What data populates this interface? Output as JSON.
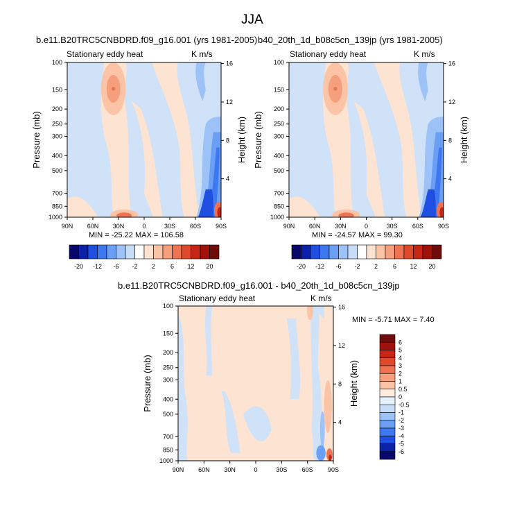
{
  "figure": {
    "title": "JJA"
  },
  "chart_data": [
    {
      "type": "heatmap",
      "title": "b.e11.B20TRC5CNBDRD.f09_g16.001 (yrs 1981-2005)",
      "left_label": "Stationary eddy heat",
      "right_label": "K m/s",
      "xlabel": "",
      "ylabel": "Pressure (mb)",
      "y2label": "Height (km)",
      "x_ticks": [
        "90N",
        "60N",
        "30N",
        "0",
        "30S",
        "60S",
        "90S"
      ],
      "y_ticks": [
        "100",
        "150",
        "200",
        "250",
        "300",
        "400",
        "500",
        "700",
        "850",
        "1000"
      ],
      "y2_ticks": [
        "16",
        "12",
        "8",
        "4"
      ],
      "y_scale": "log",
      "ylim": [
        1000,
        100
      ],
      "stats": "MIN = -25.22   MAX = 106.58",
      "min": -25.22,
      "max": 106.58,
      "colorbar": {
        "orientation": "horizontal",
        "labels": [
          "-20",
          "-12",
          "-6",
          "-2",
          "2",
          "6",
          "12",
          "20"
        ]
      }
    },
    {
      "type": "heatmap",
      "title": "b40_20th_1d_b08c5cn_139jp (yrs 1981-2005)",
      "left_label": "Stationary eddy heat",
      "right_label": "K m/s",
      "xlabel": "",
      "ylabel": "Pressure (mb)",
      "y2label": "Height (km)",
      "x_ticks": [
        "90N",
        "60N",
        "30N",
        "0",
        "30S",
        "60S",
        "90S"
      ],
      "y_ticks": [
        "100",
        "150",
        "200",
        "250",
        "300",
        "400",
        "500",
        "700",
        "850",
        "1000"
      ],
      "y2_ticks": [
        "16",
        "12",
        "8",
        "4"
      ],
      "y_scale": "log",
      "ylim": [
        1000,
        100
      ],
      "stats": "MIN = -24.57   MAX =  99.30",
      "min": -24.57,
      "max": 99.3,
      "colorbar": {
        "orientation": "horizontal",
        "labels": [
          "-20",
          "-12",
          "-6",
          "-2",
          "2",
          "6",
          "12",
          "20"
        ]
      }
    },
    {
      "type": "heatmap",
      "title": "b.e11.B20TRC5CNBDRD.f09_g16.001 - b40_20th_1d_b08c5cn_139jp",
      "left_label": "Stationary eddy heat",
      "right_label": "K m/s",
      "xlabel": "",
      "ylabel": "Pressure (mb)",
      "y2label": "Height (km)",
      "x_ticks": [
        "90N",
        "60N",
        "30N",
        "0",
        "30S",
        "60S",
        "90S"
      ],
      "y_ticks": [
        "100",
        "150",
        "200",
        "250",
        "300",
        "400",
        "500",
        "700",
        "850",
        "1000"
      ],
      "y2_ticks": [
        "16",
        "12",
        "8",
        "4"
      ],
      "y_scale": "log",
      "ylim": [
        1000,
        100
      ],
      "stats": "MIN =  -5.71  MAX =   7.40",
      "min": -5.71,
      "max": 7.4,
      "colorbar": {
        "orientation": "vertical",
        "labels": [
          "6",
          "5",
          "4",
          "3",
          "2",
          "1",
          "0.5",
          "0",
          "-0.5",
          "-1",
          "-2",
          "-3",
          "-4",
          "-5",
          "-6"
        ]
      }
    }
  ],
  "colors": {
    "main_scale": [
      "#08086b",
      "#0b22a8",
      "#1f4fe0",
      "#3d78f0",
      "#6a9ff5",
      "#9cc2f7",
      "#c7dcf7",
      "#ffffff",
      "#fde3d2",
      "#fbc4a6",
      "#f69f7c",
      "#ee7352",
      "#e04a2c",
      "#c62613",
      "#a0110a",
      "#6e0c0c"
    ],
    "diff_scale": [
      "#08086b",
      "#0b22a8",
      "#1f4fe0",
      "#3d78f0",
      "#6a9ff5",
      "#9cc2f7",
      "#c7dcf7",
      "#e6f0fb",
      "#fdebe0",
      "#fbc4a6",
      "#f69f7c",
      "#ee7352",
      "#e04a2c",
      "#c62613",
      "#a0110a",
      "#6e0c0c"
    ],
    "light_blue": "#cfe2f8",
    "light_red": "#fde3d2"
  }
}
